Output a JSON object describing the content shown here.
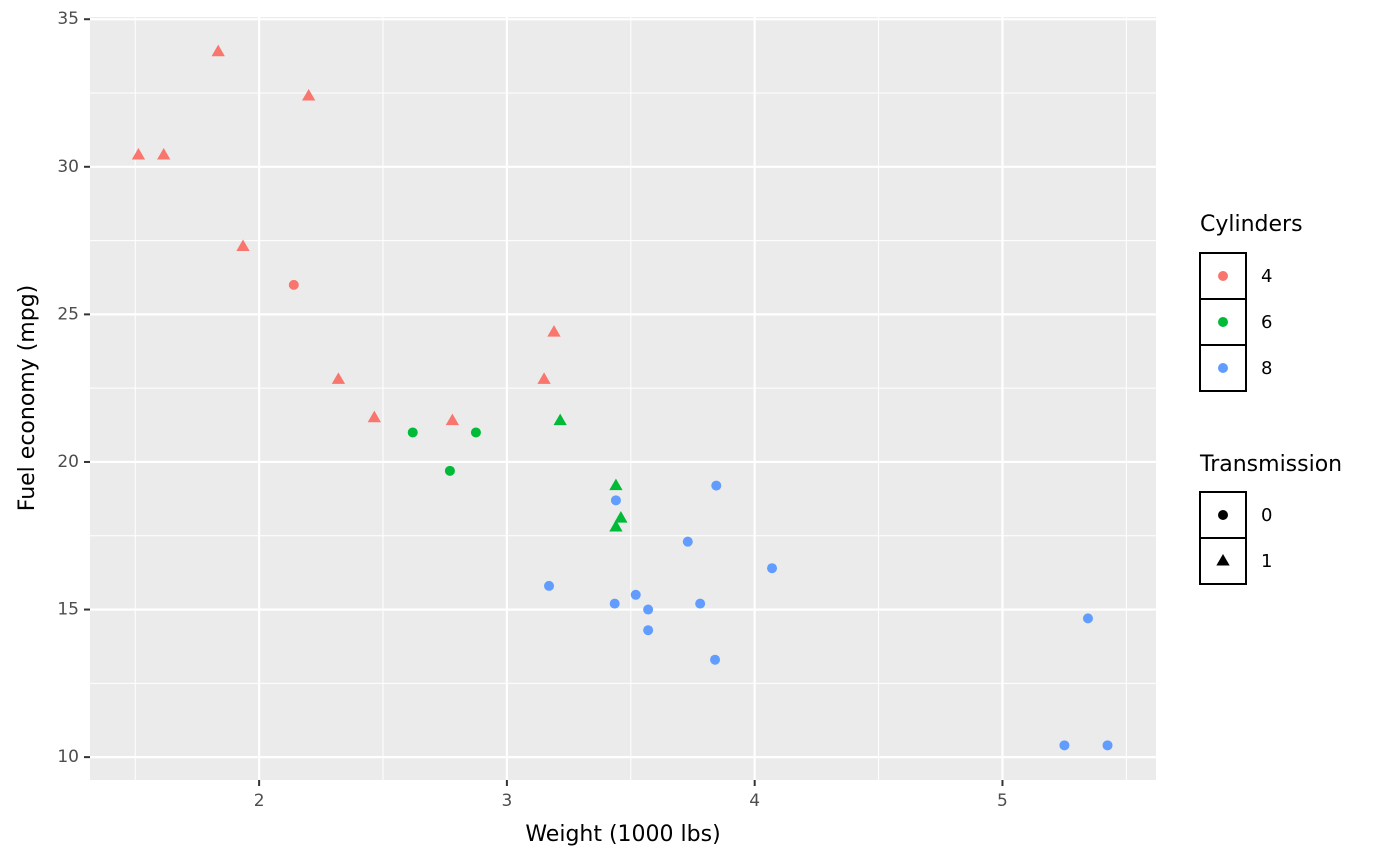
{
  "chart_data": {
    "type": "scatter",
    "x_label": "Weight (1000 lbs)",
    "y_label": "Fuel economy (mpg)",
    "xlim": [
      1.3175,
      5.6196
    ],
    "ylim": [
      9.225,
      35.075
    ],
    "xticks": [
      2,
      3,
      4,
      5
    ],
    "yticks": [
      10,
      15,
      20,
      25,
      30,
      35
    ],
    "grid": true,
    "color_legend_title": "Cylinders",
    "shape_legend": {
      "title": "Transmission",
      "labels": [
        "0",
        "1"
      ],
      "shapes": [
        "circle",
        "triangle"
      ]
    },
    "series": [
      {
        "name": "4",
        "color": "#F8766D",
        "x": [
          2.32,
          3.19,
          3.15,
          2.2,
          1.615,
          1.835,
          2.465,
          1.935,
          2.14,
          1.513,
          2.78
        ],
        "values": [
          22.8,
          24.4,
          22.8,
          32.4,
          30.4,
          33.9,
          21.5,
          27.3,
          26.0,
          30.4,
          21.4
        ],
        "transmission": [
          1,
          1,
          1,
          1,
          1,
          1,
          1,
          1,
          0,
          1,
          1
        ]
      },
      {
        "name": "6",
        "color": "#00BA38",
        "x": [
          2.62,
          2.875,
          3.215,
          3.46,
          3.44,
          3.44,
          2.77
        ],
        "values": [
          21.0,
          21.0,
          21.4,
          18.1,
          19.2,
          17.8,
          19.7
        ],
        "transmission": [
          0,
          0,
          1,
          1,
          1,
          1,
          0
        ]
      },
      {
        "name": "8",
        "color": "#619CFF",
        "x": [
          3.44,
          3.57,
          4.07,
          3.73,
          3.78,
          5.25,
          5.424,
          5.345,
          3.52,
          3.435,
          3.84,
          3.845,
          3.17,
          3.57
        ],
        "values": [
          18.7,
          14.3,
          16.4,
          17.3,
          15.2,
          10.4,
          10.4,
          14.7,
          15.5,
          15.2,
          13.3,
          19.2,
          15.8,
          15.0
        ],
        "transmission": [
          0,
          0,
          0,
          0,
          0,
          0,
          0,
          0,
          0,
          0,
          0,
          0,
          0,
          0
        ]
      }
    ]
  }
}
